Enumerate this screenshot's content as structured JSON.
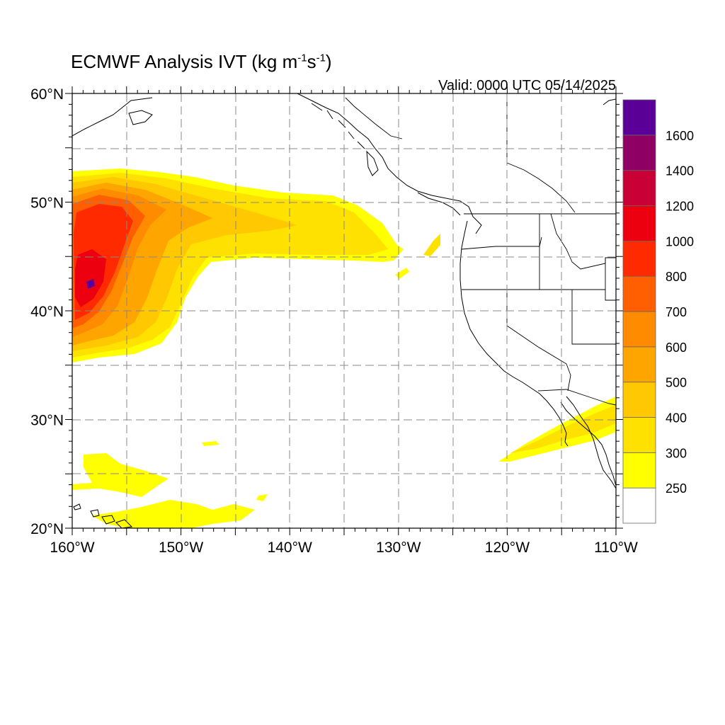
{
  "title": {
    "prefix": "ECMWF Analysis IVT (kg m",
    "exp1": "-1",
    "mid": "s",
    "exp2": "-1",
    "suffix": ")"
  },
  "valid_label": "Valid: 0000 UTC 05/14/2025",
  "axes": {
    "lat_ticks": [
      {
        "value": 60,
        "label": "60°N"
      },
      {
        "value": 50,
        "label": "50°N"
      },
      {
        "value": 40,
        "label": "40°N"
      },
      {
        "value": 30,
        "label": "30°N"
      },
      {
        "value": 20,
        "label": "20°N"
      }
    ],
    "lon_ticks": [
      {
        "value": -160,
        "label": "160°W"
      },
      {
        "value": -150,
        "label": "150°W"
      },
      {
        "value": -140,
        "label": "140°W"
      },
      {
        "value": -130,
        "label": "130°W"
      },
      {
        "value": -120,
        "label": "120°W"
      },
      {
        "value": -110,
        "label": "110°W"
      }
    ],
    "lat_range": [
      20,
      60
    ],
    "lon_range": [
      -160,
      -110
    ],
    "grid_interval_deg": 5,
    "grid": "dashed"
  },
  "colorbar": {
    "levels": [
      {
        "label": "",
        "color": "#ffffff"
      },
      {
        "label": "250",
        "color": "#ffff00"
      },
      {
        "label": "300",
        "color": "#ffe100"
      },
      {
        "label": "400",
        "color": "#ffc800"
      },
      {
        "label": "500",
        "color": "#ffa500"
      },
      {
        "label": "600",
        "color": "#ff8c00"
      },
      {
        "label": "700",
        "color": "#ff5f00"
      },
      {
        "label": "800",
        "color": "#ff2a00"
      },
      {
        "label": "1000",
        "color": "#ec0010"
      },
      {
        "label": "1200",
        "color": "#c80036"
      },
      {
        "label": "1400",
        "color": "#8f0064"
      },
      {
        "label": "1600",
        "color": "#5a0099"
      }
    ]
  }
}
